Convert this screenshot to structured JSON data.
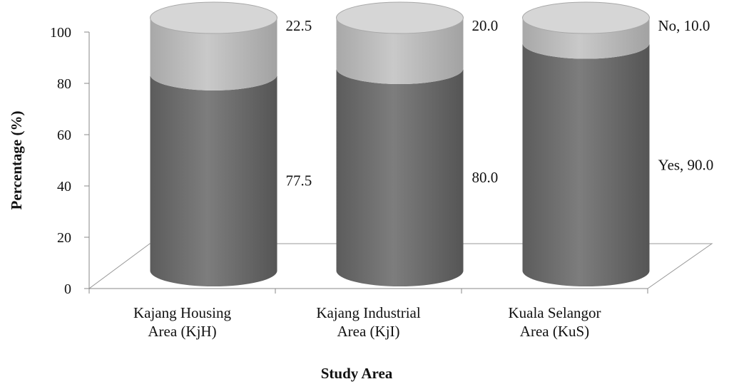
{
  "chart_data": {
    "type": "bar",
    "style": "stacked-100-3d-cylinder",
    "title": "",
    "xlabel": "Study Area",
    "ylabel": "Percentage (%)",
    "ylim": [
      0,
      100
    ],
    "yticks": [
      0,
      20,
      40,
      60,
      80,
      100
    ],
    "grid": false,
    "categories": [
      [
        "Kajang Housing",
        "Area (KjH)"
      ],
      [
        "Kajang Industrial",
        "Area (KjI)"
      ],
      [
        "Kuala Selangor",
        "Area (KuS)"
      ]
    ],
    "series": [
      {
        "name": "Yes",
        "color": "#7a7a7a",
        "values": [
          77.5,
          80.0,
          90.0
        ],
        "data_labels": [
          "77.5",
          "80.0",
          "Yes, 90.0"
        ]
      },
      {
        "name": "No",
        "color": "#bdbdbd",
        "values": [
          22.5,
          20.0,
          10.0
        ],
        "data_labels": [
          "22.5",
          "20.0",
          "No, 10.0"
        ]
      }
    ]
  }
}
